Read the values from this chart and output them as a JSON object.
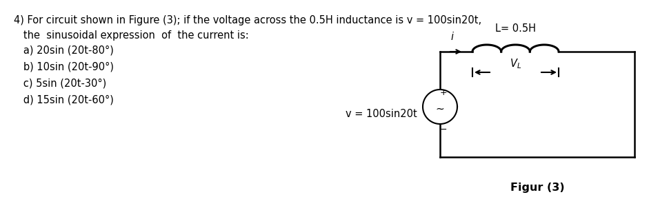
{
  "bg_color": "#ffffff",
  "question_line1": "4) For circuit shown in Figure (3); if the voltage across the 0.5H inductance is v = 100sin20t,",
  "question_line2": "   the  sinusoidal expression  of  the current is:",
  "option_a": "   a) 20sin (20t-80°)",
  "option_b": "   b) 10sin (20t-90°)",
  "option_c": "   c) 5sin (20t-30°)",
  "option_d": "   d) 15sin (20t-60°)",
  "voltage_label": "v = 100sin20t",
  "inductance_label": "L= 0.5H",
  "current_label": "i",
  "figur_label": "Figur (3)",
  "font_size": 10.5
}
